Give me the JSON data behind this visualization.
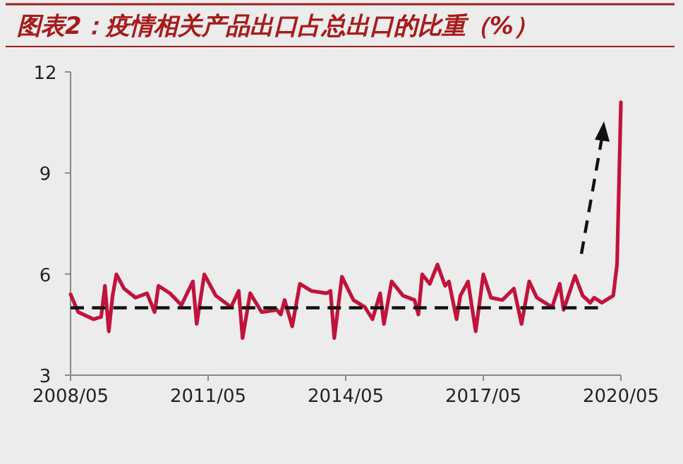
{
  "chart_data": {
    "type": "line",
    "title": "图表2：疫情相关产品出口占总出口的比重（%）",
    "x": [
      "2008-05",
      "2008-07",
      "2008-11",
      "2009-01",
      "2009-02",
      "2009-03",
      "2009-04",
      "2009-05",
      "2009-07",
      "2009-10",
      "2010-01",
      "2010-03",
      "2010-04",
      "2010-07",
      "2010-10",
      "2011-01",
      "2011-02",
      "2011-04",
      "2011-07",
      "2011-11",
      "2012-01",
      "2012-02",
      "2012-04",
      "2012-07",
      "2012-11",
      "2012-12",
      "2013-01",
      "2013-03",
      "2013-05",
      "2013-08",
      "2013-12",
      "2014-01",
      "2014-02",
      "2014-04",
      "2014-07",
      "2014-10",
      "2014-12",
      "2015-02",
      "2015-03",
      "2015-05",
      "2015-08",
      "2015-11",
      "2015-12",
      "2016-01",
      "2016-03",
      "2016-05",
      "2016-07",
      "2016-08",
      "2016-10",
      "2016-11",
      "2017-01",
      "2017-03",
      "2017-05",
      "2017-07",
      "2017-10",
      "2018-01",
      "2018-03",
      "2018-05",
      "2018-07",
      "2018-11",
      "2019-01",
      "2019-02",
      "2019-05",
      "2019-07",
      "2019-09",
      "2019-10",
      "2019-12",
      "2020-03",
      "2020-04",
      "2020-05"
    ],
    "series": [
      {
        "color": "#c0143c",
        "values": [
          5.4,
          4.87,
          4.66,
          4.73,
          5.65,
          4.3,
          5.36,
          5.99,
          5.57,
          5.3,
          5.43,
          4.87,
          5.65,
          5.43,
          5.08,
          5.78,
          4.52,
          5.99,
          5.36,
          5.02,
          5.5,
          4.1,
          5.43,
          4.87,
          4.94,
          4.8,
          5.23,
          4.45,
          5.71,
          5.5,
          5.43,
          5.5,
          4.1,
          5.92,
          5.23,
          5.02,
          4.66,
          5.43,
          4.52,
          5.78,
          5.36,
          5.23,
          4.8,
          5.99,
          5.71,
          6.28,
          5.65,
          5.78,
          4.66,
          5.36,
          5.78,
          4.3,
          5.99,
          5.3,
          5.23,
          5.57,
          4.52,
          5.78,
          5.3,
          5.02,
          5.71,
          4.94,
          5.95,
          5.36,
          5.15,
          5.3,
          5.15,
          5.36,
          6.3,
          11.1
        ]
      },
      {
        "type": "line",
        "color": "#111111",
        "line_style": "dashed",
        "x": [
          "2008-05",
          "2019-11"
        ],
        "values": [
          5,
          5
        ]
      }
    ],
    "xlim": [
      "2008-05",
      "2020-05"
    ],
    "xticks": [
      {
        "value": "2008-05",
        "label": "2008/05"
      },
      {
        "value": "2011-05",
        "label": "2011/05"
      },
      {
        "value": "2014-05",
        "label": "2014/05"
      },
      {
        "value": "2017-05",
        "label": "2017/05"
      },
      {
        "value": "2020-05",
        "label": "2020/05"
      }
    ],
    "ylim": [
      3,
      12
    ],
    "yticks": [
      3,
      6,
      9,
      12
    ]
  }
}
